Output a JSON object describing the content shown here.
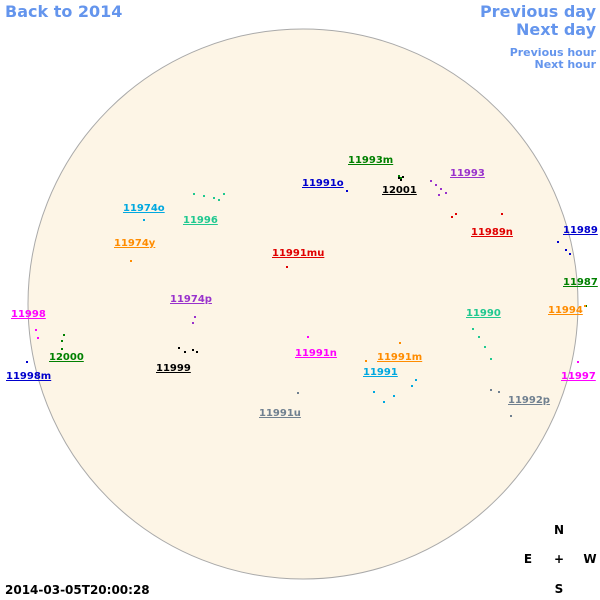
{
  "navigation": {
    "back_year": "Back to 2014",
    "previous_day": "Previous day",
    "next_day": "Next day",
    "previous_hour": "Previous hour",
    "next_hour": "Next hour"
  },
  "regions": [
    {
      "label": "11993m",
      "color": "#008000"
    },
    {
      "label": "11993",
      "color": "#9932cc"
    },
    {
      "label": "11991o",
      "color": "#0000cd"
    },
    {
      "label": "12001",
      "color": "#000000"
    },
    {
      "label": "11974o",
      "color": "#00a8e0"
    },
    {
      "label": "11996",
      "color": "#20c890"
    },
    {
      "label": "11989n",
      "color": "#e00000"
    },
    {
      "label": "11989",
      "color": "#0000cd"
    },
    {
      "label": "11974y",
      "color": "#ff8c00"
    },
    {
      "label": "11991mu",
      "color": "#e00000"
    },
    {
      "label": "11987",
      "color": "#008000"
    },
    {
      "label": "11974p",
      "color": "#9932cc"
    },
    {
      "label": "11994",
      "color": "#ff8c00"
    },
    {
      "label": "11990",
      "color": "#20c890"
    },
    {
      "label": "11998",
      "color": "#ff00ff"
    },
    {
      "label": "11991n",
      "color": "#ff00ff"
    },
    {
      "label": "11991m",
      "color": "#ff8c00"
    },
    {
      "label": "12000",
      "color": "#008000"
    },
    {
      "label": "11999",
      "color": "#000000"
    },
    {
      "label": "11991",
      "color": "#00a8e0"
    },
    {
      "label": "11998m",
      "color": "#0000cd"
    },
    {
      "label": "11997",
      "color": "#ff00ff"
    },
    {
      "label": "11992p",
      "color": "#708090"
    },
    {
      "label": "11991u",
      "color": "#708090"
    }
  ],
  "timestamp": "2014-03-05T20:00:28",
  "compass": {
    "north": "N",
    "east": "E",
    "center": "+",
    "west": "W",
    "south": "S"
  }
}
